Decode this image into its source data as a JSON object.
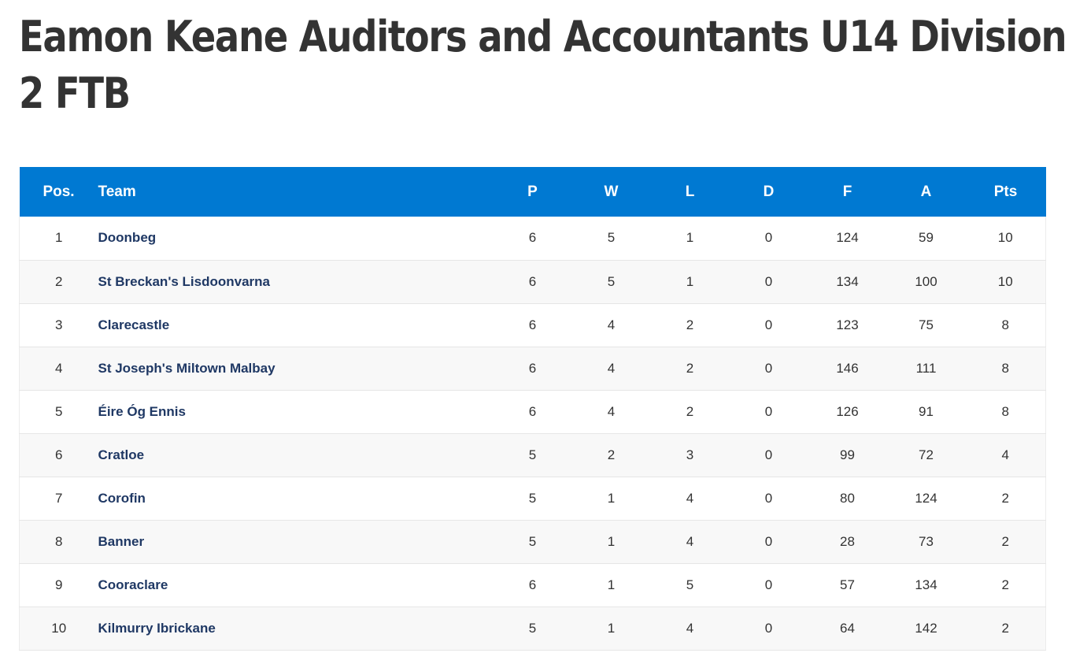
{
  "title": {
    "line1": "Eamon Keane Auditors and Accountants U14 Division",
    "line2": "2 FTB"
  },
  "table": {
    "columns": [
      "Pos.",
      "Team",
      "P",
      "W",
      "L",
      "D",
      "F",
      "A",
      "Pts"
    ],
    "rows": [
      {
        "pos": "1",
        "team": "Doonbeg",
        "p": "6",
        "w": "5",
        "l": "1",
        "d": "0",
        "f": "124",
        "a": "59",
        "pts": "10"
      },
      {
        "pos": "2",
        "team": "St Breckan's Lisdoonvarna",
        "p": "6",
        "w": "5",
        "l": "1",
        "d": "0",
        "f": "134",
        "a": "100",
        "pts": "10"
      },
      {
        "pos": "3",
        "team": "Clarecastle",
        "p": "6",
        "w": "4",
        "l": "2",
        "d": "0",
        "f": "123",
        "a": "75",
        "pts": "8"
      },
      {
        "pos": "4",
        "team": "St Joseph's Miltown Malbay",
        "p": "6",
        "w": "4",
        "l": "2",
        "d": "0",
        "f": "146",
        "a": "111",
        "pts": "8"
      },
      {
        "pos": "5",
        "team": "Éire Óg Ennis",
        "p": "6",
        "w": "4",
        "l": "2",
        "d": "0",
        "f": "126",
        "a": "91",
        "pts": "8"
      },
      {
        "pos": "6",
        "team": "Cratloe",
        "p": "5",
        "w": "2",
        "l": "3",
        "d": "0",
        "f": "99",
        "a": "72",
        "pts": "4"
      },
      {
        "pos": "7",
        "team": "Corofin",
        "p": "5",
        "w": "1",
        "l": "4",
        "d": "0",
        "f": "80",
        "a": "124",
        "pts": "2"
      },
      {
        "pos": "8",
        "team": "Banner",
        "p": "5",
        "w": "1",
        "l": "4",
        "d": "0",
        "f": "28",
        "a": "73",
        "pts": "2"
      },
      {
        "pos": "9",
        "team": "Cooraclare",
        "p": "6",
        "w": "1",
        "l": "5",
        "d": "0",
        "f": "57",
        "a": "134",
        "pts": "2"
      },
      {
        "pos": "10",
        "team": "Kilmurry Ibrickane",
        "p": "5",
        "w": "1",
        "l": "4",
        "d": "0",
        "f": "64",
        "a": "142",
        "pts": "2"
      }
    ]
  },
  "colors": {
    "header_bg": "#0079d2",
    "team_link": "#1f3864",
    "title_text": "#333333"
  }
}
